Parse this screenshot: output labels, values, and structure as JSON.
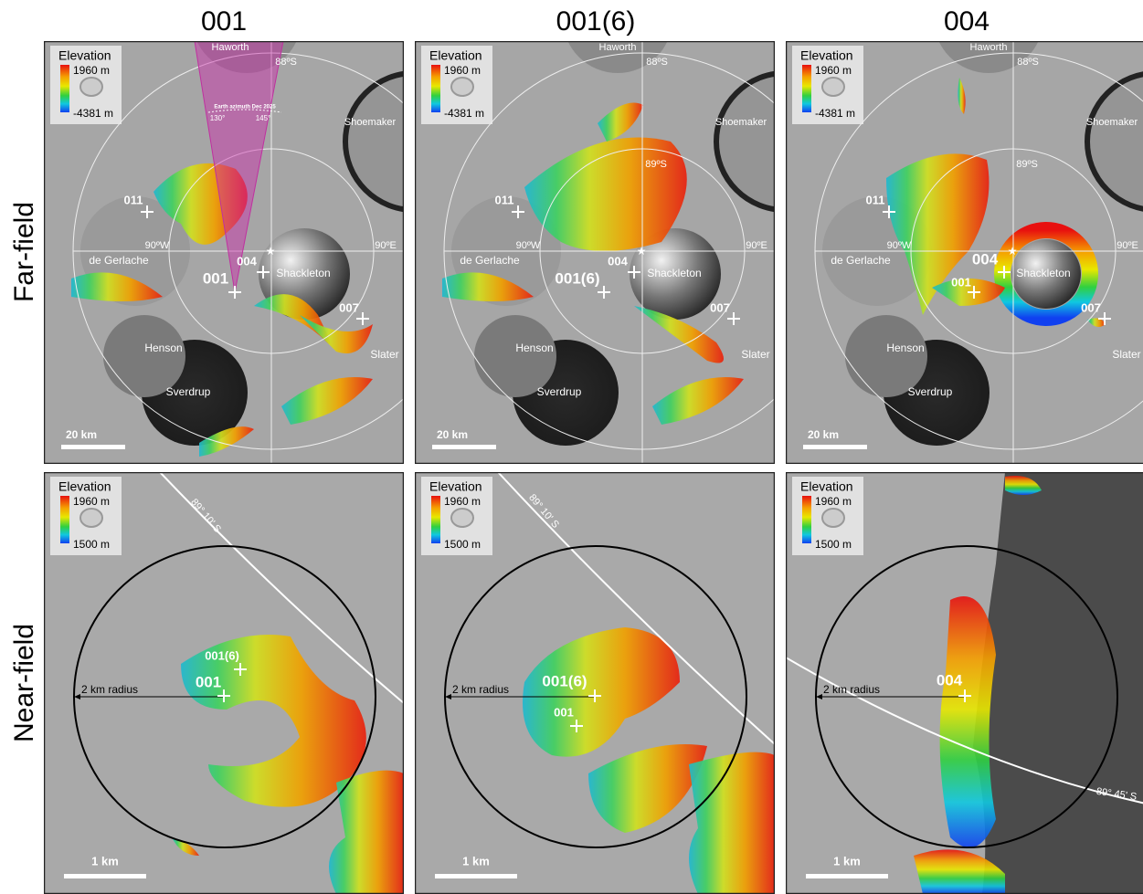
{
  "column_titles": [
    "001",
    "001(6)",
    "004"
  ],
  "row_labels": [
    "Far-field",
    "Near-field"
  ],
  "far_field": {
    "panels": [
      {
        "legend_title": "Elevation",
        "legend_max": "1960 m",
        "legend_min": "-4381 m",
        "haworth": "Haworth",
        "lat_88": "88ºS",
        "earth_azimuth": "Earth azimuth Dec 2025",
        "az_130": "130°",
        "az_145": "145°",
        "shoemaker": "Shoemaker",
        "site_011": "011",
        "lon_w": "90ºW",
        "lon_e": "90ºE",
        "de_gerlache": "de Gerlache",
        "site_small": "004",
        "shackleton": "Shackleton",
        "site_big": "001",
        "site_007": "007",
        "henson": "Henson",
        "slater": "Slater",
        "sverdrup": "Sverdrup",
        "scale": "20 km"
      },
      {
        "legend_title": "Elevation",
        "legend_max": "1960 m",
        "legend_min": "-4381 m",
        "haworth": "Haworth",
        "lat_88": "88ºS",
        "shoemaker": "Shoemaker",
        "lat_89": "89ºS",
        "site_011": "011",
        "lon_w": "90ºW",
        "lon_e": "90ºE",
        "de_gerlache": "de Gerlache",
        "site_small": "004",
        "shackleton": "Shackleton",
        "site_big": "001(6)",
        "site_007": "007",
        "henson": "Henson",
        "slater": "Slater",
        "sverdrup": "Sverdrup",
        "scale": "20 km"
      },
      {
        "legend_title": "Elevation",
        "legend_max": "1960 m",
        "legend_min": "-4381 m",
        "haworth": "Haworth",
        "lat_88": "88ºS",
        "shoemaker": "Shoemaker",
        "lat_89": "89ºS",
        "site_011": "011",
        "lon_w": "90ºW",
        "lon_e": "90ºE",
        "de_gerlache": "de Gerlache",
        "site_big": "004",
        "shackleton": "Shackleton",
        "site_small": "001",
        "site_007": "007",
        "henson": "Henson",
        "slater": "Slater",
        "sverdrup": "Sverdrup",
        "scale": "20 km"
      }
    ]
  },
  "near_field": {
    "panels": [
      {
        "legend_title": "Elevation",
        "legend_max": "1960 m",
        "legend_min": "1500 m",
        "parallel": "89° 10' S",
        "radius": "2 km radius",
        "site_small": "001(6)",
        "site_big": "001",
        "scale": "1 km"
      },
      {
        "legend_title": "Elevation",
        "legend_max": "1960 m",
        "legend_min": "1500 m",
        "parallel": "89° 10' S",
        "radius": "2 km radius",
        "site_big": "001(6)",
        "site_small": "001",
        "scale": "1 km"
      },
      {
        "legend_title": "Elevation",
        "legend_max": "1960 m",
        "legend_min": "1500 m",
        "parallel": "89° 45' S",
        "radius": "2 km radius",
        "site_big": "004",
        "scale": "1 km"
      }
    ]
  }
}
